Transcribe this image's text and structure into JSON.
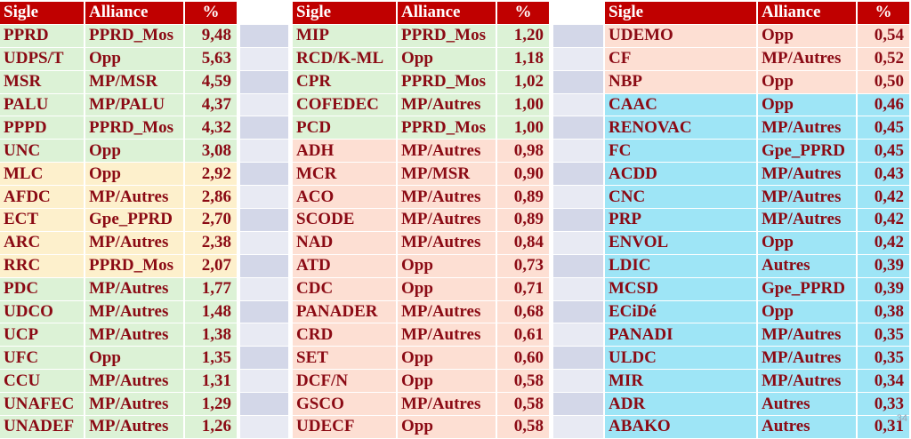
{
  "header": {
    "sigle": "Sigle",
    "alliance": "Alliance",
    "pct": "%"
  },
  "colors": {
    "header": "#c00000",
    "text": "#8b0a14",
    "green": "#dcf2d6",
    "yellow": "#fdf0cc",
    "salmon": "#fddfd3",
    "cyan": "#9ee5f6",
    "spacer_a": "#d3d7e8",
    "spacer_b": "#e8eaf3"
  },
  "tables": [
    {
      "rows": [
        {
          "sigle": "PPRD",
          "alliance": "PPRD_Mos",
          "pct": "9,48",
          "color": "green"
        },
        {
          "sigle": "UDPS/T",
          "alliance": "Opp",
          "pct": "5,63",
          "color": "green"
        },
        {
          "sigle": "MSR",
          "alliance": "MP/MSR",
          "pct": "4,59",
          "color": "green"
        },
        {
          "sigle": "PALU",
          "alliance": "MP/PALU",
          "pct": "4,37",
          "color": "green"
        },
        {
          "sigle": "PPPD",
          "alliance": "PPRD_Mos",
          "pct": "4,32",
          "color": "green"
        },
        {
          "sigle": "UNC",
          "alliance": "Opp",
          "pct": "3,08",
          "color": "green"
        },
        {
          "sigle": "MLC",
          "alliance": "Opp",
          "pct": "2,92",
          "color": "yellow"
        },
        {
          "sigle": "AFDC",
          "alliance": "MP/Autres",
          "pct": "2,86",
          "color": "yellow"
        },
        {
          "sigle": "ECT",
          "alliance": "Gpe_PPRD",
          "pct": "2,70",
          "color": "yellow"
        },
        {
          "sigle": "ARC",
          "alliance": "MP/Autres",
          "pct": "2,38",
          "color": "yellow"
        },
        {
          "sigle": "RRC",
          "alliance": "PPRD_Mos",
          "pct": "2,07",
          "color": "yellow"
        },
        {
          "sigle": "PDC",
          "alliance": "MP/Autres",
          "pct": "1,77",
          "color": "green"
        },
        {
          "sigle": "UDCO",
          "alliance": "MP/Autres",
          "pct": "1,48",
          "color": "green"
        },
        {
          "sigle": "UCP",
          "alliance": "MP/Autres",
          "pct": "1,38",
          "color": "green"
        },
        {
          "sigle": "UFC",
          "alliance": "Opp",
          "pct": "1,35",
          "color": "green"
        },
        {
          "sigle": "CCU",
          "alliance": "MP/Autres",
          "pct": "1,31",
          "color": "green"
        },
        {
          "sigle": "UNAFEC",
          "alliance": "MP/Autres",
          "pct": "1,29",
          "color": "green"
        },
        {
          "sigle": "UNADEF",
          "alliance": "MP/Autres",
          "pct": "1,26",
          "color": "green"
        }
      ]
    },
    {
      "rows": [
        {
          "sigle": "MIP",
          "alliance": "PPRD_Mos",
          "pct": "1,20",
          "color": "green"
        },
        {
          "sigle": "RCD/K-ML",
          "alliance": "Opp",
          "pct": "1,18",
          "color": "green"
        },
        {
          "sigle": "CPR",
          "alliance": "PPRD_Mos",
          "pct": "1,02",
          "color": "green"
        },
        {
          "sigle": "COFEDEC",
          "alliance": "MP/Autres",
          "pct": "1,00",
          "color": "green"
        },
        {
          "sigle": "PCD",
          "alliance": "PPRD_Mos",
          "pct": "1,00",
          "color": "green"
        },
        {
          "sigle": "ADH",
          "alliance": "MP/Autres",
          "pct": "0,98",
          "color": "salmon"
        },
        {
          "sigle": "MCR",
          "alliance": "MP/MSR",
          "pct": "0,90",
          "color": "salmon"
        },
        {
          "sigle": "ACO",
          "alliance": "MP/Autres",
          "pct": "0,89",
          "color": "salmon"
        },
        {
          "sigle": "SCODE",
          "alliance": "MP/Autres",
          "pct": "0,89",
          "color": "salmon"
        },
        {
          "sigle": "NAD",
          "alliance": "MP/Autres",
          "pct": "0,84",
          "color": "salmon"
        },
        {
          "sigle": "ATD",
          "alliance": "Opp",
          "pct": "0,73",
          "color": "salmon"
        },
        {
          "sigle": "CDC",
          "alliance": "Opp",
          "pct": "0,71",
          "color": "salmon"
        },
        {
          "sigle": "PANADER",
          "alliance": "MP/Autres",
          "pct": "0,68",
          "color": "salmon"
        },
        {
          "sigle": "CRD",
          "alliance": "MP/Autres",
          "pct": "0,61",
          "color": "salmon"
        },
        {
          "sigle": "SET",
          "alliance": "Opp",
          "pct": "0,60",
          "color": "salmon"
        },
        {
          "sigle": "DCF/N",
          "alliance": "Opp",
          "pct": "0,58",
          "color": "salmon"
        },
        {
          "sigle": "GSCO",
          "alliance": "MP/Autres",
          "pct": "0,58",
          "color": "salmon"
        },
        {
          "sigle": "UDECF",
          "alliance": "Opp",
          "pct": "0,58",
          "color": "salmon"
        }
      ]
    },
    {
      "rows": [
        {
          "sigle": "UDEMO",
          "alliance": "Opp",
          "pct": "0,54",
          "color": "salmon"
        },
        {
          "sigle": "CF",
          "alliance": "MP/Autres",
          "pct": "0,52",
          "color": "salmon"
        },
        {
          "sigle": "NBP",
          "alliance": "Opp",
          "pct": "0,50",
          "color": "salmon"
        },
        {
          "sigle": "CAAC",
          "alliance": "Opp",
          "pct": "0,46",
          "color": "cyan"
        },
        {
          "sigle": "RENOVAC",
          "alliance": "MP/Autres",
          "pct": "0,45",
          "color": "cyan"
        },
        {
          "sigle": "FC",
          "alliance": "Gpe_PPRD",
          "pct": "0,45",
          "color": "cyan"
        },
        {
          "sigle": "ACDD",
          "alliance": "MP/Autres",
          "pct": "0,43",
          "color": "cyan"
        },
        {
          "sigle": "CNC",
          "alliance": "MP/Autres",
          "pct": "0,42",
          "color": "cyan"
        },
        {
          "sigle": "PRP",
          "alliance": "MP/Autres",
          "pct": "0,42",
          "color": "cyan"
        },
        {
          "sigle": "ENVOL",
          "alliance": "Opp",
          "pct": "0,42",
          "color": "cyan"
        },
        {
          "sigle": "LDIC",
          "alliance": "Autres",
          "pct": "0,39",
          "color": "cyan"
        },
        {
          "sigle": "MCSD",
          "alliance": "Gpe_PPRD",
          "pct": "0,39",
          "color": "cyan"
        },
        {
          "sigle": "ECiDé",
          "alliance": "Opp",
          "pct": "0,38",
          "color": "cyan"
        },
        {
          "sigle": "PANADI",
          "alliance": "MP/Autres",
          "pct": "0,35",
          "color": "cyan"
        },
        {
          "sigle": "ULDC",
          "alliance": "MP/Autres",
          "pct": "0,35",
          "color": "cyan"
        },
        {
          "sigle": "MIR",
          "alliance": "MP/Autres",
          "pct": "0,34",
          "color": "cyan"
        },
        {
          "sigle": "ADR",
          "alliance": "Autres",
          "pct": "0,33",
          "color": "cyan"
        },
        {
          "sigle": "ABAKO",
          "alliance": "Autres",
          "pct": "0,31",
          "color": "cyan"
        }
      ]
    }
  ],
  "page_number": "34"
}
